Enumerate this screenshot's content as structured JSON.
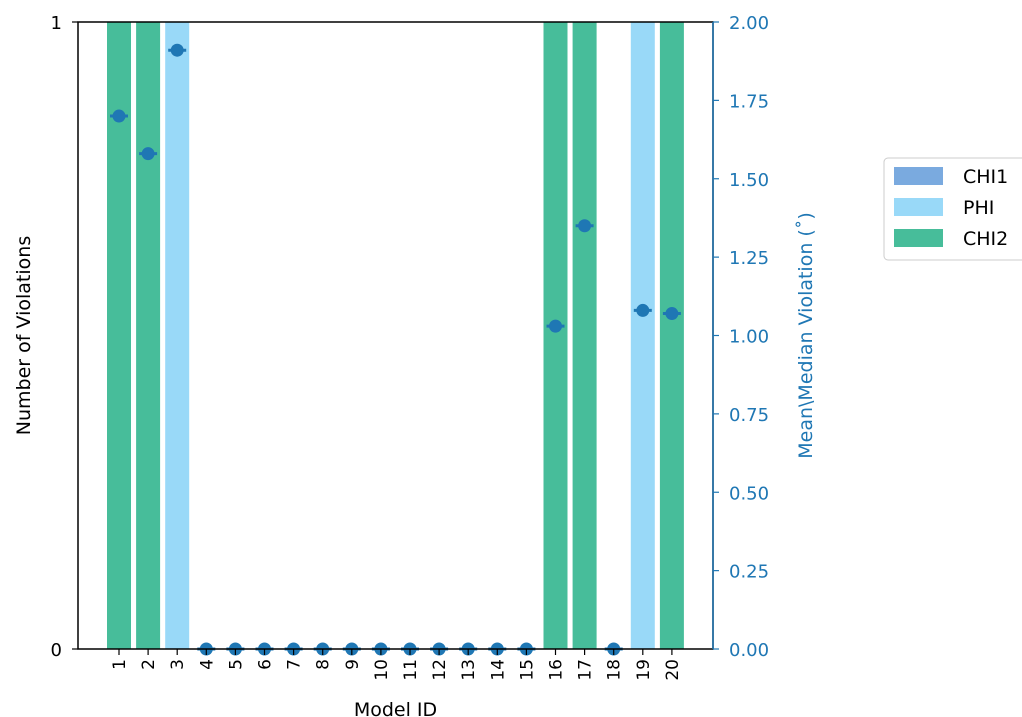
{
  "chart_data": {
    "type": "bar",
    "xlabel": "Model ID",
    "ylabel": "Number of Violations",
    "ylabel_right": "Mean\\Median Violation ($^\\circ$)",
    "ylabel_right_display": "Mean\\Median Violation (˚)",
    "ylim": [
      0,
      1
    ],
    "ylim_right": [
      0,
      2
    ],
    "left_ticks": [
      "0",
      "1"
    ],
    "right_ticks": [
      "0.00",
      "0.25",
      "0.50",
      "0.75",
      "1.00",
      "1.25",
      "1.50",
      "1.75",
      "2.00"
    ],
    "categories": [
      "1",
      "2",
      "3",
      "4",
      "5",
      "6",
      "7",
      "8",
      "9",
      "10",
      "11",
      "12",
      "13",
      "14",
      "15",
      "16",
      "17",
      "18",
      "19",
      "20"
    ],
    "series": [
      {
        "name": "CHI1",
        "color": "#7aaadf",
        "values": [
          0,
          0,
          0,
          0,
          0,
          0,
          0,
          0,
          0,
          0,
          0,
          0,
          0,
          0,
          0,
          0,
          0,
          0,
          0,
          0
        ]
      },
      {
        "name": "PHI",
        "color": "#99d9f8",
        "values": [
          0,
          0,
          1,
          0,
          0,
          0,
          0,
          0,
          0,
          0,
          0,
          0,
          0,
          0,
          0,
          0,
          0,
          0,
          1,
          0
        ]
      },
      {
        "name": "CHI2",
        "color": "#47bd9a",
        "values": [
          1,
          1,
          0,
          0,
          0,
          0,
          0,
          0,
          0,
          0,
          0,
          0,
          0,
          0,
          0,
          1,
          1,
          0,
          0,
          1
        ]
      }
    ],
    "violation_values": [
      1.7,
      1.58,
      1.91,
      0,
      0,
      0,
      0,
      0,
      0,
      0,
      0,
      0,
      0,
      0,
      0,
      1.03,
      1.35,
      0,
      1.08,
      1.07
    ],
    "marker_color": "#1f77b4",
    "legend_position": "outside-right"
  }
}
